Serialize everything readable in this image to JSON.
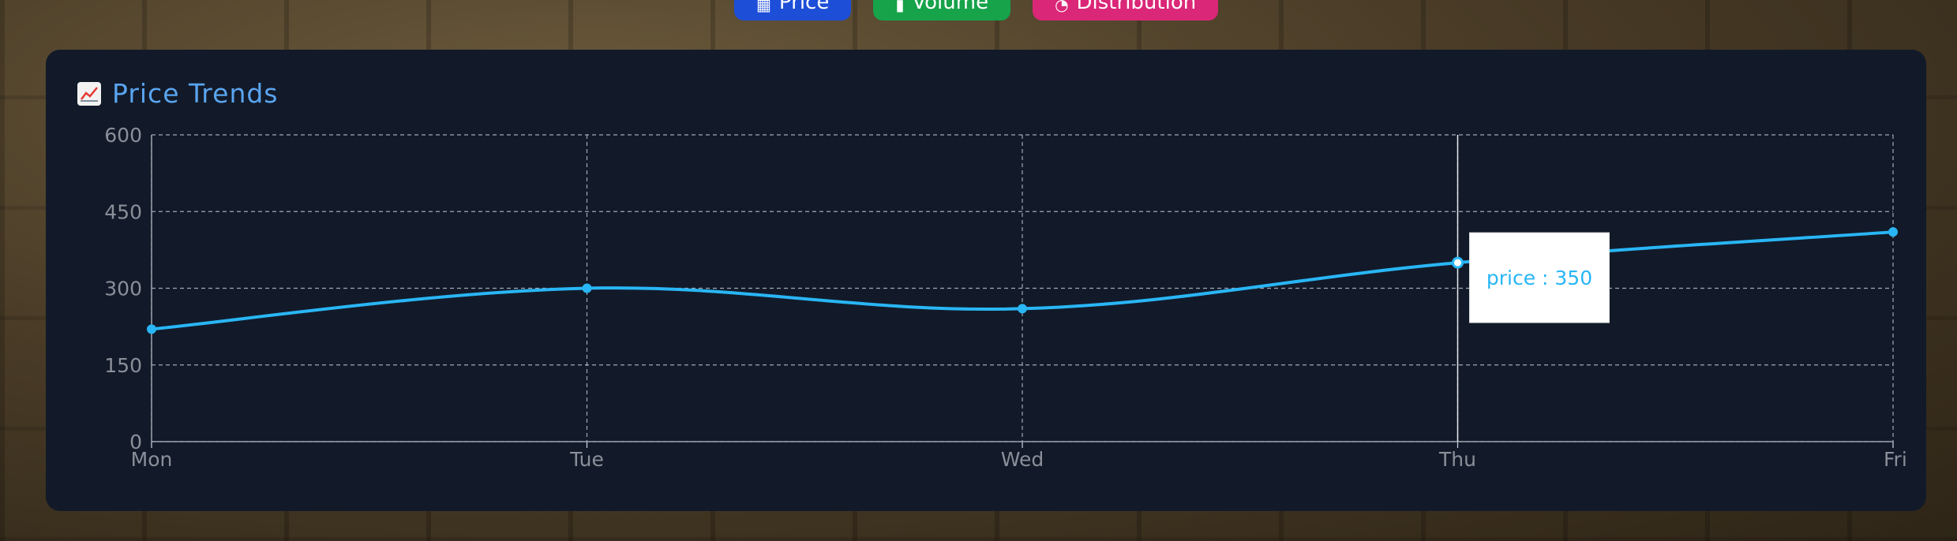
{
  "tabs": [
    {
      "label": "Price",
      "icon": "chart-icon",
      "color": "#1d4ed8"
    },
    {
      "label": "Volume",
      "icon": "bars-icon",
      "color": "#16a34a"
    },
    {
      "label": "Distribution",
      "icon": "pie-icon",
      "color": "#db2777"
    }
  ],
  "panel": {
    "title": "Price Trends",
    "title_icon": "trend-chart-icon"
  },
  "tooltip": {
    "label": "price : 350",
    "category": "Thu"
  },
  "colors": {
    "line": "#29b6f6",
    "grid": "#cfd8e3",
    "panel_bg": "#121a29",
    "tick": "#8a8f99",
    "title": "#5aa5f0"
  },
  "chart_data": {
    "type": "line",
    "title": "Price Trends",
    "categories": [
      "Mon",
      "Tue",
      "Wed",
      "Thu",
      "Fri"
    ],
    "series": [
      {
        "name": "price",
        "values": [
          220,
          300,
          260,
          350,
          410
        ]
      }
    ],
    "ylim": [
      0,
      600
    ],
    "yticks": [
      "0",
      "150",
      "300",
      "450",
      "600"
    ],
    "grid": true,
    "xlabel": "",
    "ylabel": ""
  }
}
